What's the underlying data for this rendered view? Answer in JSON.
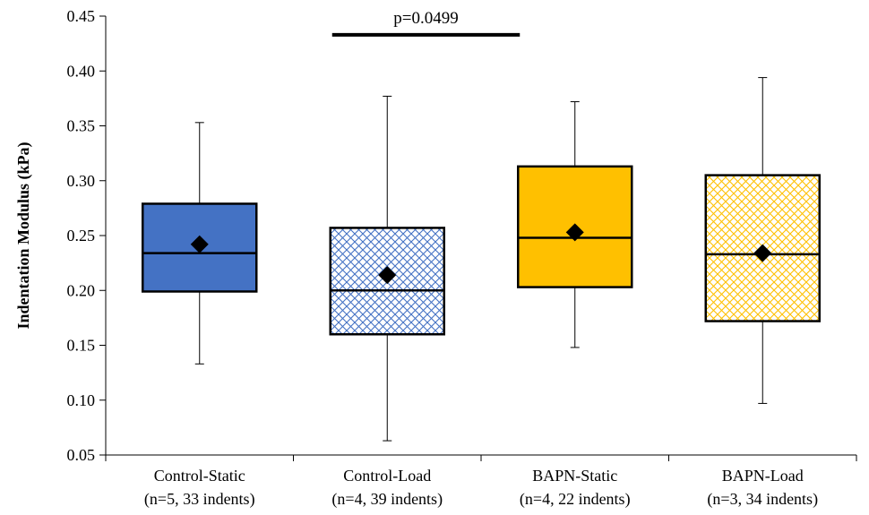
{
  "chart_data": {
    "type": "box",
    "title": "",
    "xlabel": "",
    "ylabel": "Indentation Modulus (kPa)",
    "ylim": [
      0.05,
      0.45
    ],
    "yticks": [
      "0.05",
      "0.10",
      "0.15",
      "0.20",
      "0.25",
      "0.30",
      "0.35",
      "0.40",
      "0.45"
    ],
    "yticks_values": [
      0.05,
      0.1,
      0.15,
      0.2,
      0.25,
      0.3,
      0.35,
      0.4,
      0.45
    ],
    "grid": false,
    "categories": [
      {
        "line1": "Control-Static",
        "line2": "(n=5, 33 indents)"
      },
      {
        "line1": "Control-Load",
        "line2": "(n=4, 39 indents)"
      },
      {
        "line1": "BAPN-Static",
        "line2": "(n=4, 22 indents)"
      },
      {
        "line1": "BAPN-Load",
        "line2": "(n=3, 34 indents)"
      }
    ],
    "boxes": [
      {
        "min": 0.133,
        "q1": 0.199,
        "median": 0.234,
        "q3": 0.279,
        "max": 0.353,
        "mean": 0.242,
        "fill": "#4472C4",
        "pattern": "solid"
      },
      {
        "min": 0.063,
        "q1": 0.16,
        "median": 0.2,
        "q3": 0.257,
        "max": 0.377,
        "mean": 0.214,
        "fill": "#4472C4",
        "pattern": "crosshatch"
      },
      {
        "min": 0.148,
        "q1": 0.203,
        "median": 0.248,
        "q3": 0.313,
        "max": 0.372,
        "mean": 0.253,
        "fill": "#FFC000",
        "pattern": "solid"
      },
      {
        "min": 0.097,
        "q1": 0.172,
        "median": 0.233,
        "q3": 0.305,
        "max": 0.394,
        "mean": 0.234,
        "fill": "#FFC000",
        "pattern": "crosshatch"
      }
    ],
    "annotations": [
      {
        "text": "p=0.0499",
        "from_category": 1,
        "to_category": 2,
        "y": 0.433
      }
    ]
  }
}
